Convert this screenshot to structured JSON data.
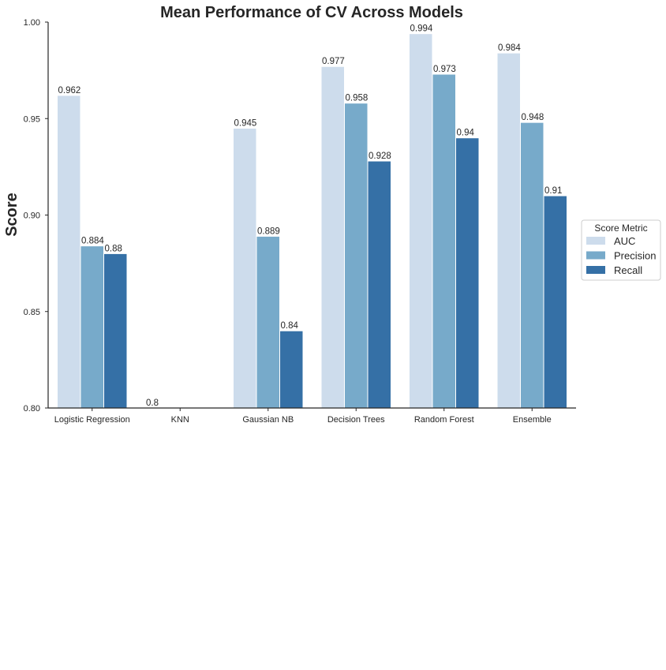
{
  "chart_data": {
    "type": "bar",
    "title": "Mean Performance of CV Across Models",
    "xlabel": "",
    "ylabel": "Score",
    "ylim": [
      0.8,
      1.0
    ],
    "yticks": [
      "0.80",
      "0.85",
      "0.90",
      "0.95",
      "1.00"
    ],
    "grid": false,
    "legend": {
      "title": "Score Metric",
      "placement": "right"
    },
    "categories": [
      "Logistic Regression",
      "KNN",
      "Gaussian NB",
      "Decision Trees",
      "Random Forest",
      "Ensemble"
    ],
    "series": [
      {
        "name": "AUC",
        "color": "#cddcec",
        "values": [
          0.962,
          0.8,
          0.945,
          0.977,
          0.994,
          0.984
        ],
        "labels": [
          "0.962",
          "0.8",
          "0.945",
          "0.977",
          "0.994",
          "0.984"
        ]
      },
      {
        "name": "Precision",
        "color": "#77aaca",
        "values": [
          0.884,
          null,
          0.889,
          0.958,
          0.973,
          0.948
        ],
        "labels": [
          "0.884",
          "",
          "0.889",
          "0.958",
          "0.973",
          "0.948"
        ]
      },
      {
        "name": "Recall",
        "color": "#3570a6",
        "values": [
          0.88,
          null,
          0.84,
          0.928,
          0.94,
          0.91
        ],
        "labels": [
          "0.88",
          "",
          "0.84",
          "0.928",
          "0.94",
          "0.91"
        ]
      }
    ]
  }
}
